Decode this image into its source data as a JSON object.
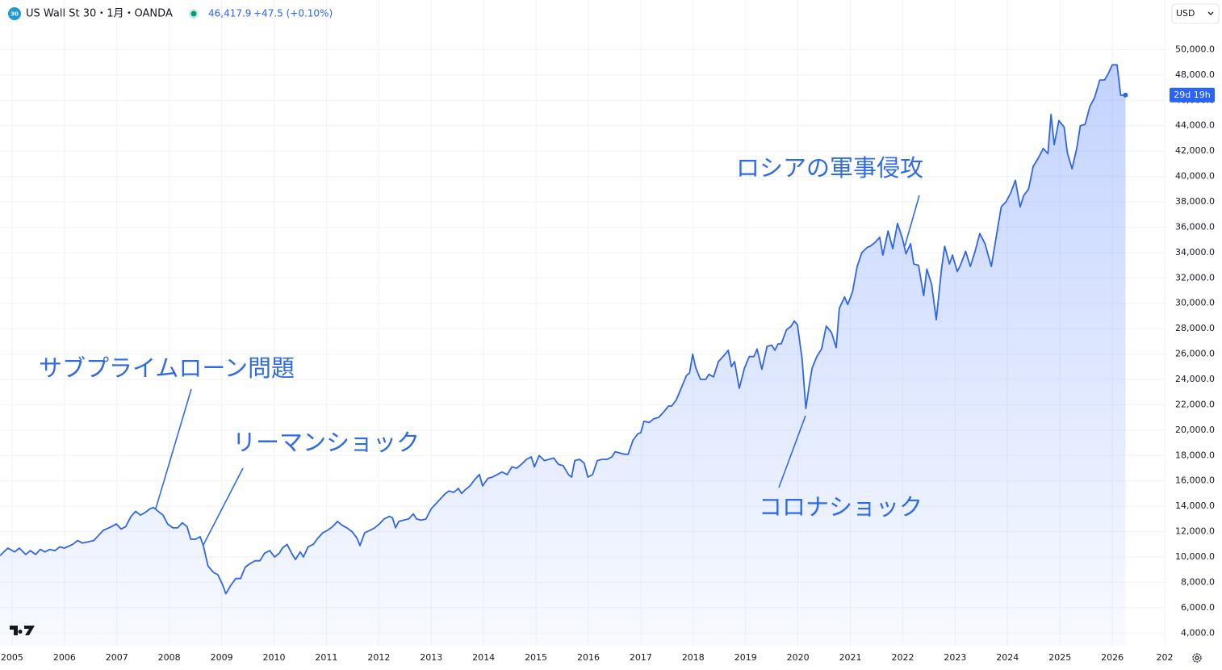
{
  "header": {
    "symbol_icon": "30",
    "title": "US Wall St 30・1月・OANDA",
    "last_value": "46,417.9",
    "change": "+47.5 (+0.10%)",
    "currency": "USD"
  },
  "chart_data": {
    "type": "area",
    "color": "#2f66e6",
    "grid": true,
    "annotations": [
      "サブプライムローン問題",
      "リーマンショック",
      "ロシアの軍事侵攻",
      "コロナショック"
    ],
    "countdown_label": "29d 19h",
    "xlim": [
      2004.77,
      2027.03
    ],
    "ylim": [
      3000,
      52000
    ],
    "xticks": [
      2005,
      2006,
      2007,
      2008,
      2009,
      2010,
      2011,
      2012,
      2013,
      2014,
      2015,
      2016,
      2017,
      2018,
      2019,
      2020,
      2021,
      2022,
      2023,
      2024,
      2025,
      2026,
      {
        "value": 2027,
        "label": "202"
      }
    ],
    "yticks": [
      {
        "value": 4000,
        "label": "4,000.0"
      },
      {
        "value": 6000,
        "label": "6,000.0"
      },
      {
        "value": 8000,
        "label": "8,000.0"
      },
      {
        "value": 10000,
        "label": "10,000.0"
      },
      {
        "value": 12000,
        "label": "12,000.0"
      },
      {
        "value": 14000,
        "label": "14,000.0"
      },
      {
        "value": 16000,
        "label": "16,000.0"
      },
      {
        "value": 18000,
        "label": "18,000.0"
      },
      {
        "value": 20000,
        "label": "20,000.0"
      },
      {
        "value": 22000,
        "label": "22,000.0"
      },
      {
        "value": 24000,
        "label": "24,000.0"
      },
      {
        "value": 26000,
        "label": "26,000.0"
      },
      {
        "value": 28000,
        "label": "28,000.0"
      },
      {
        "value": 30000,
        "label": "30,000.0"
      },
      {
        "value": 32000,
        "label": "32,000.0"
      },
      {
        "value": 34000,
        "label": "34,000.0"
      },
      {
        "value": 36000,
        "label": "36,000.0"
      },
      {
        "value": 38000,
        "label": "38,000.0"
      },
      {
        "value": 40000,
        "label": "40,000.0"
      },
      {
        "value": 42000,
        "label": "42,000.0"
      },
      {
        "value": 44000,
        "label": "44,000.0"
      },
      {
        "value": 46000,
        "label": "46,000.0"
      },
      {
        "value": 48000,
        "label": "48,000.0"
      },
      {
        "value": 50000,
        "label": "50,000.0"
      }
    ],
    "x": [
      2004.77,
      2004.92,
      2005.05,
      2005.14,
      2005.26,
      2005.35,
      2005.45,
      2005.54,
      2005.63,
      2005.72,
      2005.82,
      2005.91,
      2006.0,
      2006.16,
      2006.25,
      2006.34,
      2006.46,
      2006.56,
      2006.65,
      2006.74,
      2006.9,
      2006.99,
      2007.08,
      2007.17,
      2007.27,
      2007.36,
      2007.45,
      2007.54,
      2007.63,
      2007.7,
      2007.79,
      2007.88,
      2007.97,
      2008.07,
      2008.16,
      2008.25,
      2008.34,
      2008.41,
      2008.5,
      2008.59,
      2008.65,
      2008.74,
      2008.84,
      2008.93,
      2009.02,
      2009.08,
      2009.18,
      2009.27,
      2009.36,
      2009.45,
      2009.55,
      2009.64,
      2009.73,
      2009.82,
      2009.92,
      2010.01,
      2010.1,
      2010.16,
      2010.25,
      2010.35,
      2010.41,
      2010.5,
      2010.56,
      2010.65,
      2010.75,
      2010.84,
      2010.93,
      2011.02,
      2011.12,
      2011.21,
      2011.3,
      2011.39,
      2011.49,
      2011.58,
      2011.64,
      2011.73,
      2011.83,
      2011.92,
      2012.01,
      2012.1,
      2012.2,
      2012.26,
      2012.32,
      2012.38,
      2012.47,
      2012.57,
      2012.66,
      2012.72,
      2012.81,
      2012.9,
      2013.0,
      2013.09,
      2013.18,
      2013.27,
      2013.34,
      2013.43,
      2013.52,
      2013.58,
      2013.65,
      2013.74,
      2013.83,
      2013.92,
      2013.98,
      2014.08,
      2014.17,
      2014.26,
      2014.35,
      2014.45,
      2014.54,
      2014.63,
      2014.72,
      2014.82,
      2014.91,
      2014.97,
      2015.06,
      2015.16,
      2015.25,
      2015.34,
      2015.43,
      2015.52,
      2015.62,
      2015.68,
      2015.74,
      2015.83,
      2015.92,
      2015.99,
      2016.08,
      2016.17,
      2016.26,
      2016.36,
      2016.45,
      2016.51,
      2016.6,
      2016.69,
      2016.76,
      2016.85,
      2016.94,
      2017.0,
      2017.06,
      2017.16,
      2017.25,
      2017.34,
      2017.43,
      2017.53,
      2017.59,
      2017.68,
      2017.77,
      2017.87,
      2017.93,
      2017.99,
      2018.05,
      2018.14,
      2018.24,
      2018.3,
      2018.39,
      2018.48,
      2018.57,
      2018.67,
      2018.73,
      2018.79,
      2018.88,
      2018.98,
      2019.07,
      2019.16,
      2019.22,
      2019.31,
      2019.41,
      2019.5,
      2019.56,
      2019.62,
      2019.68,
      2019.78,
      2019.87,
      2019.93,
      2019.99,
      2020.08,
      2020.15,
      2020.21,
      2020.27,
      2020.36,
      2020.45,
      2020.54,
      2020.64,
      2020.73,
      2020.79,
      2020.89,
      2020.95,
      2021.04,
      2021.13,
      2021.22,
      2021.32,
      2021.38,
      2021.47,
      2021.56,
      2021.62,
      2021.72,
      2021.81,
      2021.9,
      2022.0,
      2022.06,
      2022.15,
      2022.21,
      2022.3,
      2022.4,
      2022.46,
      2022.55,
      2022.64,
      2022.74,
      2022.8,
      2022.89,
      2022.95,
      2023.04,
      2023.1,
      2023.2,
      2023.29,
      2023.38,
      2023.47,
      2023.57,
      2023.69,
      2023.81,
      2023.88,
      2023.97,
      2024.06,
      2024.15,
      2024.24,
      2024.31,
      2024.4,
      2024.49,
      2024.58,
      2024.68,
      2024.77,
      2024.83,
      2024.89,
      2024.98,
      2025.08,
      2025.14,
      2025.23,
      2025.32,
      2025.39,
      2025.48,
      2025.57,
      2025.66,
      2025.76,
      2025.85,
      2025.91,
      2026.0,
      2026.09,
      2026.16,
      2026.25
    ],
    "values": [
      10100,
      10700,
      10400,
      10700,
      10200,
      10500,
      10200,
      10600,
      10400,
      10600,
      10500,
      10800,
      10700,
      11000,
      11300,
      11100,
      11200,
      11300,
      11700,
      12100,
      12400,
      12600,
      12200,
      12400,
      13200,
      13600,
      13300,
      13500,
      13800,
      13900,
      13600,
      13300,
      12600,
      12300,
      12300,
      12700,
      12400,
      11400,
      11400,
      11600,
      10900,
      9300,
      8800,
      8600,
      7800,
      7100,
      7800,
      8300,
      8300,
      9200,
      9500,
      9700,
      9700,
      10300,
      10500,
      10000,
      10300,
      10700,
      11000,
      10200,
      9800,
      10400,
      10000,
      10800,
      11000,
      11500,
      11900,
      12100,
      12400,
      12800,
      12500,
      12300,
      12000,
      11500,
      10900,
      11900,
      12100,
      12300,
      12600,
      13000,
      13200,
      13100,
      12300,
      12800,
      12900,
      13000,
      13400,
      13000,
      12900,
      13000,
      13800,
      14200,
      14600,
      15000,
      15200,
      15100,
      15400,
      15000,
      15300,
      15600,
      16100,
      16500,
      15600,
      16200,
      16300,
      16500,
      16700,
      16500,
      17100,
      17000,
      17300,
      17700,
      17900,
      17100,
      18000,
      17600,
      17700,
      17800,
      17300,
      17200,
      16500,
      16300,
      17600,
      17700,
      17400,
      16300,
      16500,
      17600,
      17700,
      17700,
      17900,
      18300,
      18200,
      18100,
      18100,
      19200,
      19700,
      19800,
      20700,
      20600,
      20900,
      21000,
      21400,
      21900,
      21900,
      22400,
      23300,
      24300,
      24500,
      26000,
      24900,
      24000,
      24000,
      24400,
      24200,
      25400,
      25800,
      26300,
      25000,
      25400,
      23300,
      24900,
      25800,
      25800,
      26400,
      24800,
      26600,
      26700,
      26300,
      26800,
      26800,
      27900,
      28200,
      28600,
      28300,
      25600,
      21700,
      23400,
      24900,
      25800,
      26400,
      28200,
      27700,
      26500,
      29600,
      30500,
      29900,
      30900,
      32900,
      34000,
      34400,
      34500,
      34800,
      35200,
      33800,
      35700,
      34300,
      36300,
      35000,
      33900,
      34700,
      33100,
      33000,
      30600,
      32700,
      31500,
      28700,
      32700,
      34500,
      33100,
      33800,
      32500,
      33000,
      34100,
      32900,
      34100,
      35500,
      34700,
      32900,
      35900,
      37600,
      38000,
      38700,
      39700,
      37600,
      38500,
      39000,
      40800,
      41400,
      42200,
      41800,
      44900,
      42500,
      44400,
      43900,
      41900,
      40600,
      42200,
      44000,
      44100,
      45500,
      46200,
      47600,
      47600,
      48000,
      48800,
      48800,
      46400,
      46417.9
    ]
  }
}
